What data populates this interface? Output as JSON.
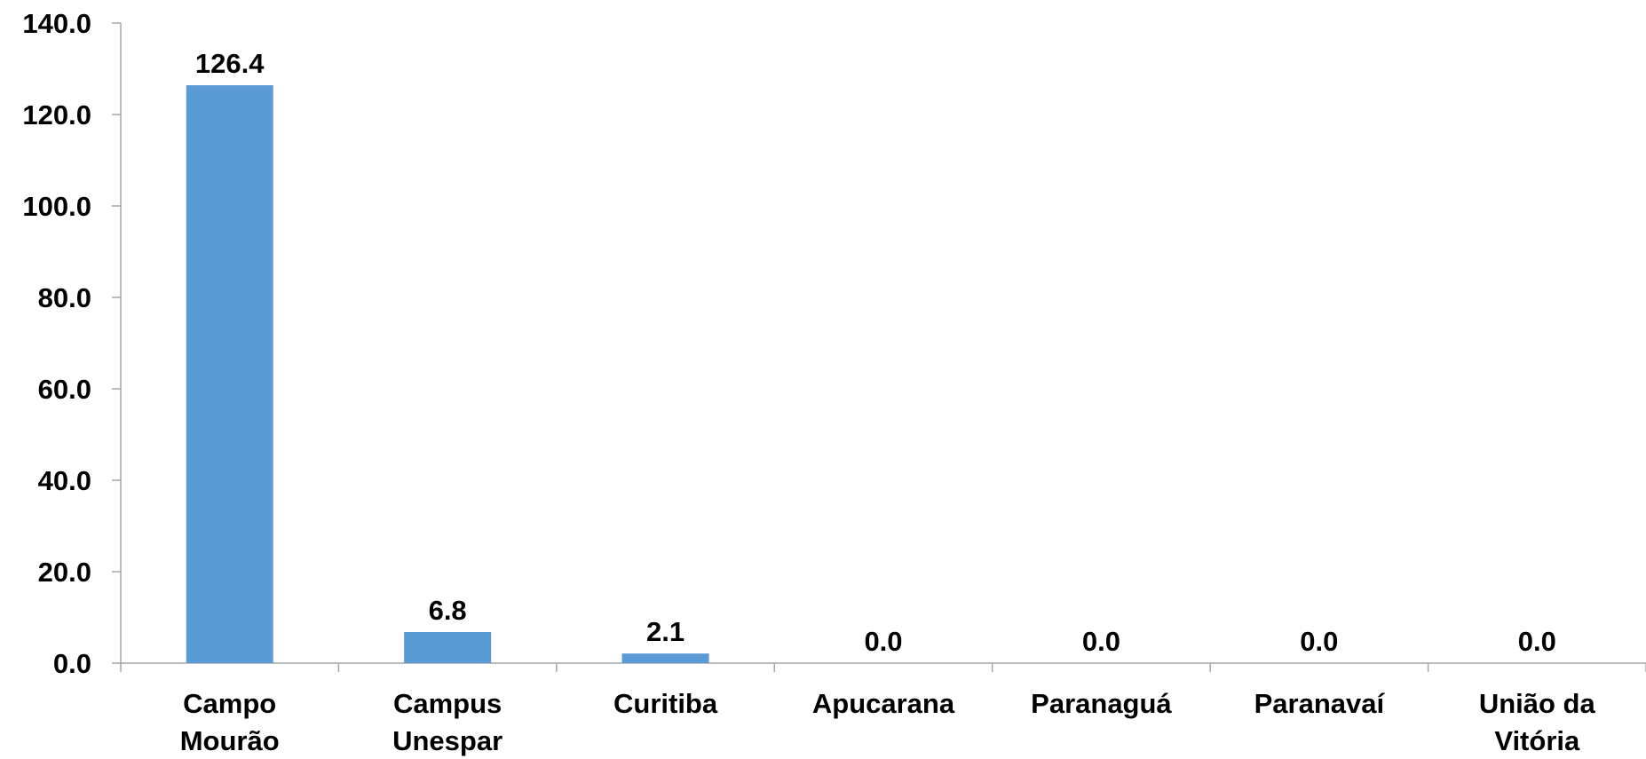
{
  "chart_data": {
    "type": "bar",
    "categories": [
      [
        "Campo",
        "Mourão"
      ],
      [
        "Campus",
        "Unespar"
      ],
      [
        "Curitiba"
      ],
      [
        "Apucarana"
      ],
      [
        "Paranaguá"
      ],
      [
        "Paranavaí"
      ],
      [
        "União da",
        "Vitória"
      ]
    ],
    "values": [
      126.4,
      6.8,
      2.1,
      0.0,
      0.0,
      0.0,
      0.0
    ],
    "data_labels": [
      "126.4",
      "6.8",
      "2.1",
      "0.0",
      "0.0",
      "0.0",
      "0.0"
    ],
    "y_ticks": [
      "0.0",
      "20.0",
      "40.0",
      "60.0",
      "80.0",
      "100.0",
      "120.0",
      "140.0"
    ],
    "ylim": [
      0,
      140
    ],
    "grid": false,
    "legend": "none",
    "bar_color": "#5b9bd5",
    "axis_color": "#a6a6a6"
  }
}
